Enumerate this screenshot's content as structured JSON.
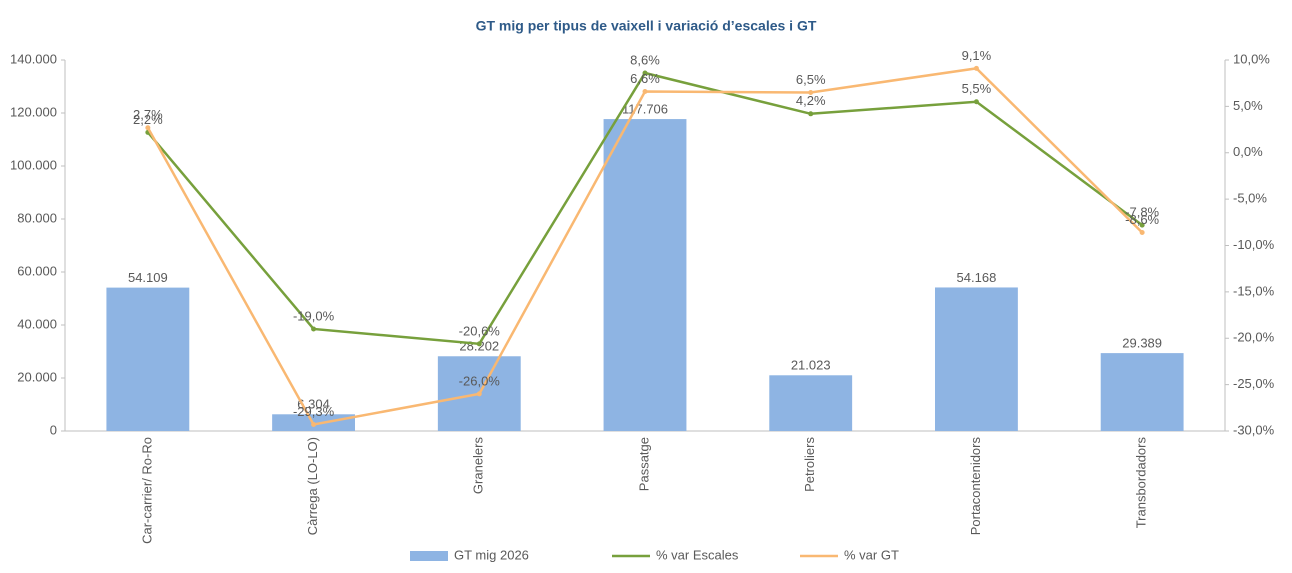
{
  "chart_data": {
    "type": "bar_line",
    "title": "GT mig per tipus de vaixell i variació d’escales i GT",
    "categories": [
      "Car-carrier/ Ro-Ro",
      "Càrrega (LO-LO)",
      "Granelers",
      "Passatge",
      "Petroliers",
      "Portacontenidors",
      "Transbordadors"
    ],
    "series": [
      {
        "name": "GT mig 2026",
        "color": "#8eb4e3",
        "kind": "bar",
        "values": [
          54109,
          6304,
          28202,
          117706,
          21023,
          54168,
          29389
        ],
        "value_labels": [
          "54.109",
          "6.304",
          "28.202",
          "117.706",
          "21.023",
          "54.168",
          "29.389"
        ]
      },
      {
        "name": "% var Escales",
        "color": "#77a03c",
        "kind": "line",
        "axis": "y2",
        "values": [
          2.2,
          -19.0,
          -20.6,
          8.6,
          4.2,
          5.5,
          -7.8
        ],
        "value_labels": [
          "2,2%",
          "-19,0%",
          "-20,6%",
          "8,6%",
          "4,2%",
          "5,5%",
          "-7,8%"
        ]
      },
      {
        "name": "% var GT",
        "color": "#f9b872",
        "kind": "line",
        "axis": "y2",
        "values": [
          2.7,
          -29.3,
          -26.0,
          6.6,
          6.5,
          9.1,
          -8.6
        ],
        "value_labels": [
          "2,7%",
          "-29,3%",
          "-26,0%",
          "6,6%",
          "6,5%",
          "9,1%",
          "-8,6%"
        ]
      }
    ],
    "ylim": [
      0,
      140000
    ],
    "yticks": [
      0,
      {
        "value": 20000,
        "label": "20.000"
      },
      {
        "value": 40000,
        "label": "40.000"
      },
      {
        "value": 60000,
        "label": "60.000"
      },
      {
        "value": 80000,
        "label": "80.000"
      },
      {
        "value": 100000,
        "label": "100.000"
      },
      {
        "value": 120000,
        "label": "120.000"
      },
      {
        "value": 140000,
        "label": "140.000"
      }
    ],
    "y2lim": [
      -30,
      10
    ],
    "y2ticks": [
      {
        "value": -30,
        "label": "-30,0%"
      },
      {
        "value": -25,
        "label": "-25,0%"
      },
      {
        "value": -20,
        "label": "-20,0%"
      },
      {
        "value": -15,
        "label": "-15,0%"
      },
      {
        "value": -10,
        "label": "-10,0%"
      },
      {
        "value": -5,
        "label": "-5,0%"
      },
      {
        "value": 0,
        "label": "0,0%"
      },
      {
        "value": 5,
        "label": "5,0%"
      },
      {
        "value": 10,
        "label": "10,0%"
      }
    ],
    "legend": "bottom",
    "grid": false
  }
}
